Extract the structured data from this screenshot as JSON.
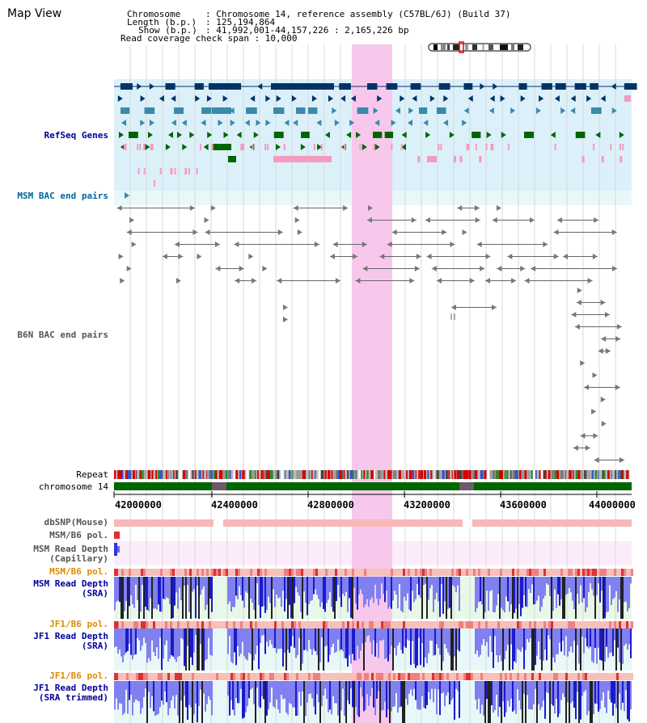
{
  "title": "Map View",
  "info": {
    "chromosome_key": "Chromosome",
    "chromosome_val": ": Chromosome 14, reference assembly (C57BL/6J) (Build 37)",
    "length_key": "Length (b.p.)",
    "length_val": ": 125,194,864",
    "show_key": "Show (b.p.)",
    "show_val": ": 41,992,001-44,157,226 : 2,165,226 bp",
    "coverage_line": "Read coverage check span : 10,000"
  },
  "tracks": {
    "refseq": "RefSeq Genes",
    "msm_bac": "MSM BAC end pairs",
    "b6n_bac": "B6N BAC end pairs",
    "repeat": "Repeat",
    "chromosome": "chromosome 14",
    "dbsnp": "dbSNP(Mouse)",
    "msm_b6_pol_1": "MSM/B6 pol.",
    "msm_depth_cap_1": "MSM Read Depth",
    "msm_depth_cap_2": "(Capillary)",
    "msm_b6_pol_2": "MSM/B6 pol.",
    "msm_depth_sra_1": "MSM Read Depth",
    "msm_depth_sra_2": "(SRA)",
    "jf1_pol_1": "JF1/B6 pol.",
    "jf1_depth_sra_1": "JF1 Read Depth",
    "jf1_depth_sra_2": "(SRA)",
    "jf1_pol_2": "JF1/B6 pol.",
    "jf1_depth_trim_1": "JF1 Read Depth",
    "jf1_depth_trim_2": "(SRA trimmed)"
  },
  "axis": {
    "ticks": [
      "42000000",
      "42400000",
      "42800000",
      "43200000",
      "43600000",
      "44000000"
    ],
    "start_bp": 41992001,
    "end_bp": 44157226
  },
  "colors": {
    "refseq_bg": "#dcf0fa",
    "bac_bg": "#e8f8f8",
    "highlight": "#f7c8ec",
    "gene_navy": "#003366",
    "gene_teal": "#3a8aaa",
    "gene_green": "#006600",
    "gene_pink": "#f59ac0",
    "chromosome_green": "#006600",
    "label_navy": "#000099",
    "label_teal": "#006699",
    "label_orange": "#e08a00"
  }
}
